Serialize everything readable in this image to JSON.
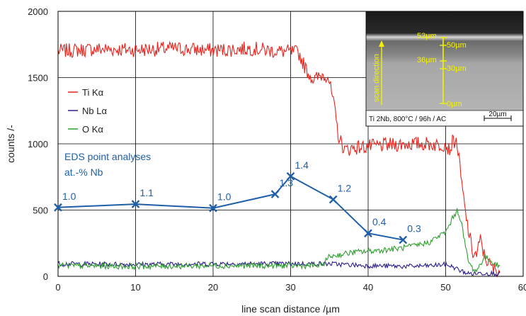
{
  "chart_data": {
    "type": "line",
    "xlabel": "line scan distance /µm",
    "ylabel": "counts /-",
    "xlim": [
      0,
      60
    ],
    "ylim": [
      0,
      2000
    ],
    "x_ticks": [
      "0",
      "10",
      "20",
      "30",
      "40",
      "50",
      "60"
    ],
    "y_ticks": [
      "0",
      "500",
      "1000",
      "1500",
      "2000"
    ],
    "grid": true,
    "legend_position": "left",
    "series": [
      {
        "name": "Ti  Kα",
        "color": "#e8231c",
        "x": [
          0,
          5,
          10,
          15,
          20,
          25,
          28,
          31,
          32,
          33,
          34,
          34.8,
          35.5,
          36.2,
          37,
          38,
          40,
          45,
          48,
          49,
          50,
          50.5,
          51,
          51.5,
          52,
          52.5,
          53,
          53.5,
          54,
          54.5,
          55,
          56,
          57
        ],
        "y": [
          1700,
          1715,
          1710,
          1720,
          1705,
          1720,
          1700,
          1690,
          1560,
          1480,
          1520,
          1520,
          1320,
          1050,
          950,
          970,
          980,
          1000,
          1000,
          990,
          1000,
          950,
          1030,
          1000,
          730,
          500,
          320,
          180,
          160,
          280,
          150,
          60,
          40
        ]
      },
      {
        "name": "Nb Lα",
        "color": "#2a1f8c",
        "x": [
          0,
          10,
          20,
          30,
          35,
          40,
          45,
          48,
          50,
          51,
          52,
          53,
          55,
          57
        ],
        "y": [
          95,
          90,
          95,
          95,
          95,
          80,
          75,
          80,
          90,
          70,
          40,
          20,
          25,
          20
        ]
      },
      {
        "name": "O   Kα",
        "color": "#2f9e2f",
        "x": [
          0,
          10,
          20,
          30,
          34,
          35,
          36,
          38,
          40,
          42,
          44,
          46,
          48,
          49,
          50,
          51,
          51.5,
          52,
          52.5,
          53,
          53.5,
          54,
          55,
          56,
          57
        ],
        "y": [
          80,
          75,
          80,
          80,
          80,
          150,
          160,
          180,
          190,
          200,
          210,
          230,
          260,
          300,
          330,
          450,
          500,
          420,
          240,
          100,
          60,
          40,
          150,
          110,
          70
        ]
      }
    ],
    "point_series": {
      "name": "EDS point analyses at.-% Nb",
      "title_line1": "EDS point analyses",
      "title_line2": "at.-%  Nb",
      "color": "#1f5fa8",
      "points": [
        {
          "x": 0,
          "y": 520,
          "label": "1.0"
        },
        {
          "x": 10,
          "y": 545,
          "label": "1.1"
        },
        {
          "x": 20,
          "y": 515,
          "label": "1.0"
        },
        {
          "x": 28,
          "y": 620,
          "label": "1.3"
        },
        {
          "x": 30,
          "y": 755,
          "label": "1.4"
        },
        {
          "x": 35.5,
          "y": 580,
          "label": "1.2"
        },
        {
          "x": 40,
          "y": 325,
          "label": "0.4"
        },
        {
          "x": 44.5,
          "y": 275,
          "label": "0.3"
        }
      ]
    },
    "inset": {
      "labels": {
        "l53": "53µm",
        "l50": "50µm",
        "l36": "36µm",
        "l30": "30µm",
        "l0": "0µm",
        "scan": "scan direction",
        "caption": "Ti 2Nb, 800°C / 96h / AC",
        "scale": "20µm"
      }
    }
  }
}
